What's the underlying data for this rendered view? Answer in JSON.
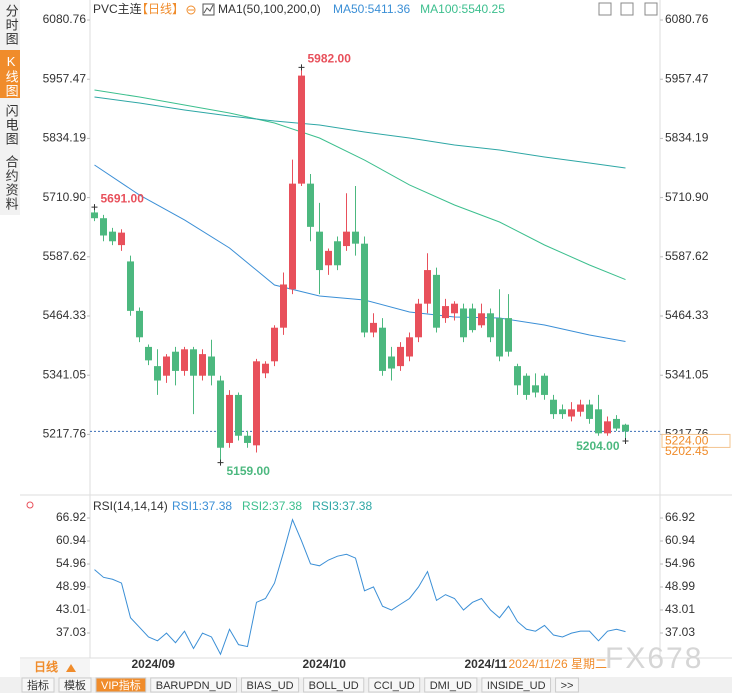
{
  "chart_data": [
    {
      "type": "candlestick",
      "title": "PVC主连",
      "period": "【日线】",
      "indicator": "MA1(50,100,200,0)",
      "up_color": "#e8505b",
      "down_color": "#4cb87f",
      "categories": [
        null,
        null,
        null,
        null,
        null,
        "2024/09",
        null,
        null,
        null,
        null,
        null,
        null,
        null,
        null,
        null,
        null,
        null,
        null,
        null,
        null,
        null,
        null,
        null,
        null,
        "2024/10",
        null,
        null,
        null,
        null,
        null,
        null,
        null,
        null,
        null,
        null,
        null,
        null,
        null,
        null,
        null,
        null,
        null,
        "2024/11",
        null,
        null,
        null,
        null,
        null,
        null,
        null,
        null,
        null,
        null,
        null,
        null,
        null,
        null,
        null,
        null,
        null
      ],
      "open": [
        5680,
        5668,
        5640,
        5612,
        5578,
        5475,
        5400,
        5360,
        5340,
        5390,
        5350,
        5395,
        5340,
        5380,
        5330,
        5200,
        5300,
        5215,
        5195,
        5345,
        5370,
        5440,
        5520,
        5740,
        5740,
        5640,
        5570,
        5620,
        5610,
        5640,
        5615,
        5430,
        5440,
        5380,
        5360,
        5380,
        5420,
        5490,
        5550,
        5460,
        5470,
        5480,
        5480,
        5445,
        5470,
        5460,
        5460,
        5360,
        5340,
        5320,
        5340,
        5290,
        5270,
        5255,
        5265,
        5280,
        5270,
        5220,
        5250,
        5238
      ],
      "high": [
        5691,
        5675,
        5648,
        5645,
        5590,
        5482,
        5405,
        5395,
        5385,
        5400,
        5400,
        5400,
        5395,
        5415,
        5340,
        5310,
        5305,
        5225,
        5375,
        5370,
        5445,
        5555,
        5790,
        5982,
        5760,
        5700,
        5605,
        5630,
        5720,
        5735,
        5630,
        5470,
        5460,
        5400,
        5410,
        5430,
        5500,
        5595,
        5565,
        5500,
        5495,
        5490,
        5490,
        5490,
        5480,
        5520,
        5510,
        5365,
        5345,
        5345,
        5345,
        5300,
        5280,
        5285,
        5290,
        5290,
        5300,
        5255,
        5258,
        5240
      ],
      "low": [
        5662,
        5620,
        5612,
        5600,
        5465,
        5410,
        5362,
        5300,
        5325,
        5320,
        5340,
        5260,
        5330,
        5320,
        5159,
        5190,
        5205,
        5190,
        5180,
        5335,
        5360,
        5425,
        5510,
        5735,
        5620,
        5510,
        5550,
        5560,
        5600,
        5590,
        5420,
        5420,
        5340,
        5330,
        5350,
        5370,
        5410,
        5470,
        5430,
        5450,
        5455,
        5410,
        5430,
        5440,
        5410,
        5370,
        5380,
        5300,
        5290,
        5295,
        5290,
        5250,
        5250,
        5245,
        5255,
        5240,
        5215,
        5215,
        5225,
        5204
      ],
      "close": [
        5668,
        5632,
        5620,
        5638,
        5475,
        5420,
        5372,
        5330,
        5380,
        5350,
        5395,
        5340,
        5385,
        5340,
        5190,
        5300,
        5215,
        5200,
        5370,
        5365,
        5440,
        5530,
        5740,
        5965,
        5650,
        5560,
        5600,
        5570,
        5640,
        5615,
        5430,
        5450,
        5350,
        5355,
        5400,
        5420,
        5490,
        5560,
        5440,
        5485,
        5490,
        5420,
        5435,
        5470,
        5420,
        5380,
        5390,
        5320,
        5300,
        5305,
        5300,
        5260,
        5260,
        5270,
        5280,
        5250,
        5220,
        5245,
        5230,
        5224
      ],
      "series": [
        {
          "legend": "MA50:5411.36",
          "color": "#3b8fd6",
          "x": [
            0,
            5,
            10,
            15,
            20,
            25,
            30,
            35,
            40,
            45,
            50,
            55,
            59
          ],
          "values": [
            5778.8,
            5716.3,
            5664.3,
            5606.0,
            5528.9,
            5506.0,
            5497.7,
            5472.7,
            5462.3,
            5460.2,
            5445.6,
            5424.8,
            5411.36
          ]
        },
        {
          "legend": "MA100:5540.25",
          "color": "#3cbf8e",
          "x": [
            0,
            5,
            10,
            15,
            20,
            25,
            30,
            35,
            40,
            45,
            50,
            55,
            59
          ],
          "values": [
            5935.0,
            5920.4,
            5903.7,
            5887.1,
            5866.3,
            5835.0,
            5789.2,
            5737.2,
            5695.5,
            5660.1,
            5612.2,
            5570.6,
            5540.25
          ]
        },
        {
          "color": "#2ea7a5",
          "x": [
            0,
            5,
            10,
            15,
            20,
            25,
            30,
            35,
            40,
            45,
            50,
            55,
            59
          ],
          "values": [
            5920.4,
            5907.9,
            5893.3,
            5880.8,
            5870.4,
            5862.1,
            5847.5,
            5835.0,
            5820.4,
            5810.0,
            5795.5,
            5783.0,
            5772.5
          ]
        }
      ],
      "extremes": [
        {
          "index": 0,
          "value": 5691,
          "label": "5691.00",
          "color": "#e8505b"
        },
        {
          "index": 23,
          "value": 5982,
          "label": "5982.00",
          "color": "#e8505b"
        },
        {
          "index": 14,
          "value": 5159,
          "label": "5159.00",
          "color": "#4cb87f"
        },
        {
          "index": 59,
          "value": 5204,
          "label": "5204.00",
          "color": "#4cb87f"
        }
      ],
      "price_tags": [
        {
          "value": 5224,
          "label": "5224.00"
        },
        {
          "value": 5202.45,
          "label": "5202.45"
        }
      ],
      "ylim": [
        5102,
        6101.6
      ],
      "yticks": [
        6080.76,
        5957.47,
        5834.19,
        {
          "value": 5710.9,
          "label": "5710.90"
        },
        5587.62,
        5464.33,
        5341.05,
        5217.76
      ]
    },
    {
      "type": "line",
      "title": "RSI(14,14,14)",
      "legend": [
        {
          "text": "RSI1:37.38",
          "color": "#3b8fd6"
        },
        {
          "text": "RSI2:37.38",
          "color": "#3cbf8e"
        },
        {
          "text": "RSI3:37.38",
          "color": "#2ea7a5"
        }
      ],
      "color": "#3b8fd6",
      "values": [
        53.5,
        51.5,
        51,
        50,
        41,
        38.5,
        36,
        35,
        37,
        34.5,
        37.5,
        33,
        37,
        36,
        31.5,
        38,
        34,
        33.5,
        45,
        46,
        50,
        58,
        66.5,
        61,
        55,
        54.5,
        56,
        57,
        57.5,
        56.5,
        48,
        49,
        44,
        43,
        44.5,
        46,
        49,
        53,
        45.5,
        47,
        46,
        43,
        45,
        46,
        43,
        41,
        44,
        40,
        38,
        37.5,
        39,
        36.5,
        36,
        37,
        37.5,
        37.5,
        35,
        37.5,
        38,
        37.38
      ],
      "ylim": [
        31.31,
        72.38
      ],
      "yticks": [
        66.92,
        60.94,
        54.96,
        48.99,
        43.01,
        37.03
      ]
    }
  ],
  "ui": {
    "tabs_left": [
      "分时图",
      "K线图",
      "闪电图",
      "合约资料"
    ],
    "period_button": "日线",
    "current_date": "2024/11/26 星期二",
    "bottom_tabs": [
      "指标",
      "模板",
      "VIP指标",
      "BARUPDN_UD",
      "BIAS_UD",
      "BOLL_UD",
      "CCI_UD",
      "DMI_UD",
      "INSIDE_UD",
      ">>"
    ],
    "watermark": "FX678"
  }
}
